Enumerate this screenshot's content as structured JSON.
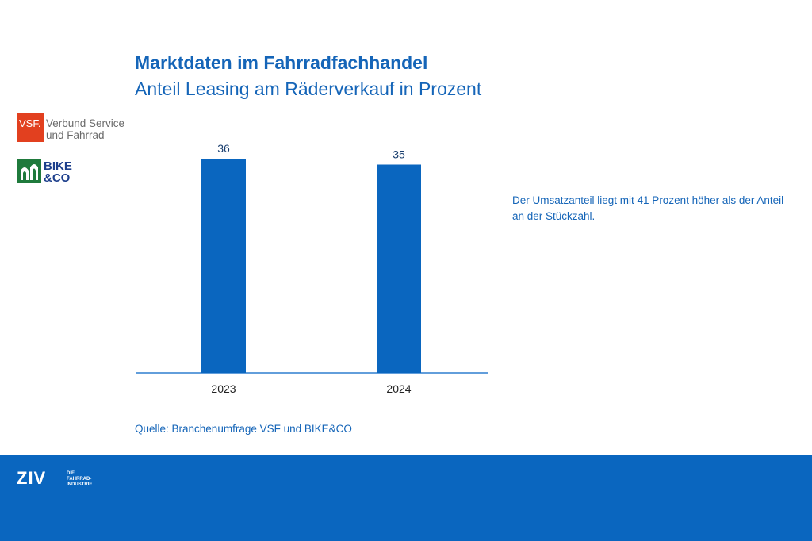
{
  "header": {
    "title": "Marktdaten im Fahrradfachhandel",
    "subtitle": "Anteil Leasing am Räderverkauf in Prozent"
  },
  "logos": {
    "vsf_box": "VSF.",
    "vsf_text_line1": "Verbund Service",
    "vsf_text_line2": "und Fahrrad",
    "bike_line1": "BIKE",
    "bike_line2": "&CO",
    "ziv": "ZIV",
    "ziv_sub_line1": "DIE",
    "ziv_sub_line2": "FAHRRAD-",
    "ziv_sub_line3": "INDUSTRIE"
  },
  "note": "Der Umsatzanteil liegt mit 41 Prozent höher als der Anteil an der Stückzahl.",
  "source": "Quelle: Branchenumfrage VSF und BIKE&CO",
  "colors": {
    "accent": "#1565b8",
    "bar": "#0a66bf",
    "footer": "#0a66bf",
    "vsf_red": "#e2401f",
    "bike_green": "#1f7a3c"
  },
  "chart_data": {
    "type": "bar",
    "categories": [
      "2023",
      "2024"
    ],
    "values": [
      36,
      35
    ],
    "title": "Anteil Leasing am Räderverkauf in Prozent",
    "xlabel": "",
    "ylabel": "",
    "ylim": [
      0,
      36
    ],
    "grid": false,
    "data_labels": true
  }
}
